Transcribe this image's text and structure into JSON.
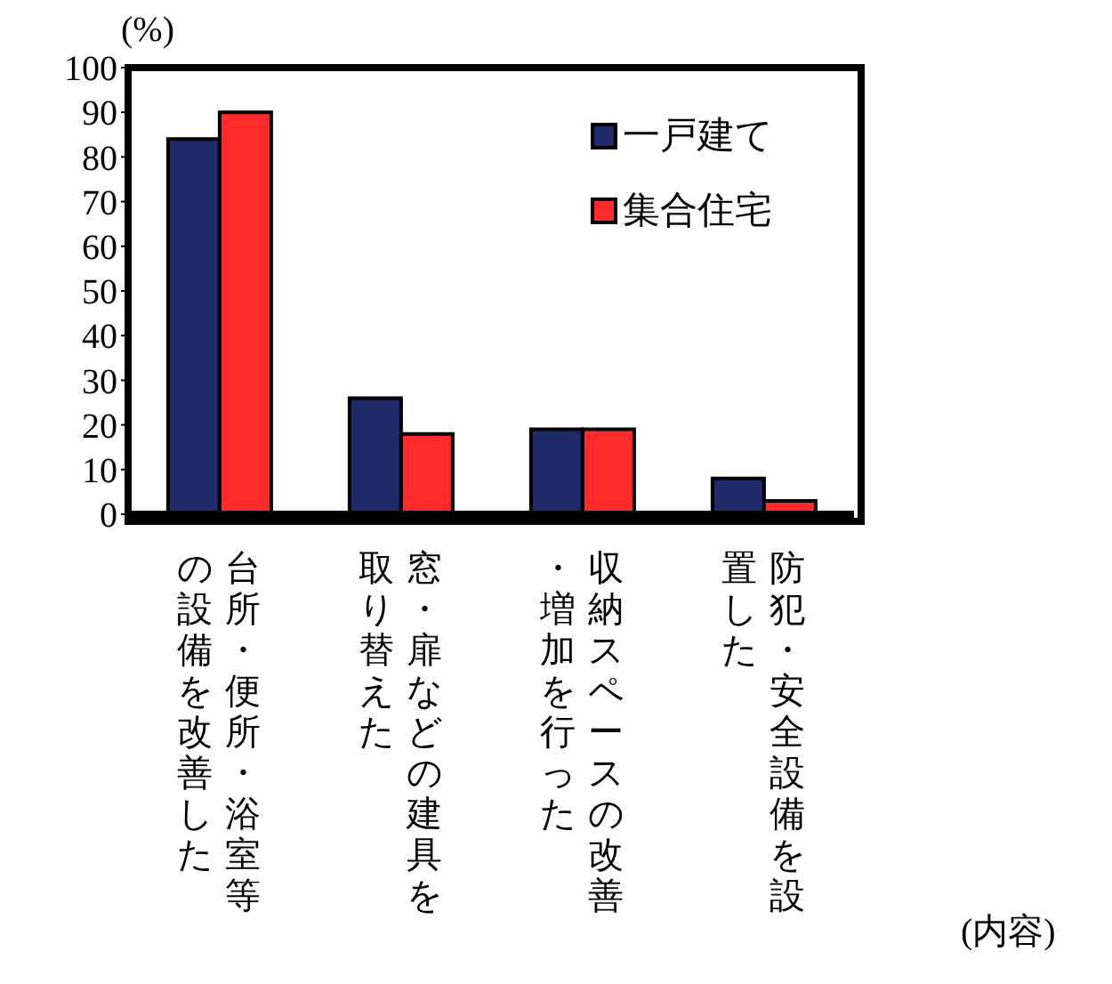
{
  "chart_data": {
    "type": "bar",
    "categories": [
      "台所・便所・浴室等の設備を改善した",
      "窓・扉などの建具を取り替えた",
      "収納スペースの改善・増加を行った",
      "防犯・安全設備を設置した"
    ],
    "series": [
      {
        "name": "一戸建て",
        "color": "#1f2a6b",
        "values": [
          84,
          26,
          19,
          8
        ]
      },
      {
        "name": "集合住宅",
        "color": "#ff2a2a",
        "values": [
          90,
          18,
          19,
          3
        ]
      }
    ],
    "ylabel": "(%)",
    "annotations": [
      "(内容)"
    ],
    "ylim": [
      0,
      100
    ],
    "yticks": [
      0,
      10,
      20,
      30,
      40,
      50,
      60,
      70,
      80,
      90,
      100
    ],
    "legend": "top right",
    "grid": false
  }
}
